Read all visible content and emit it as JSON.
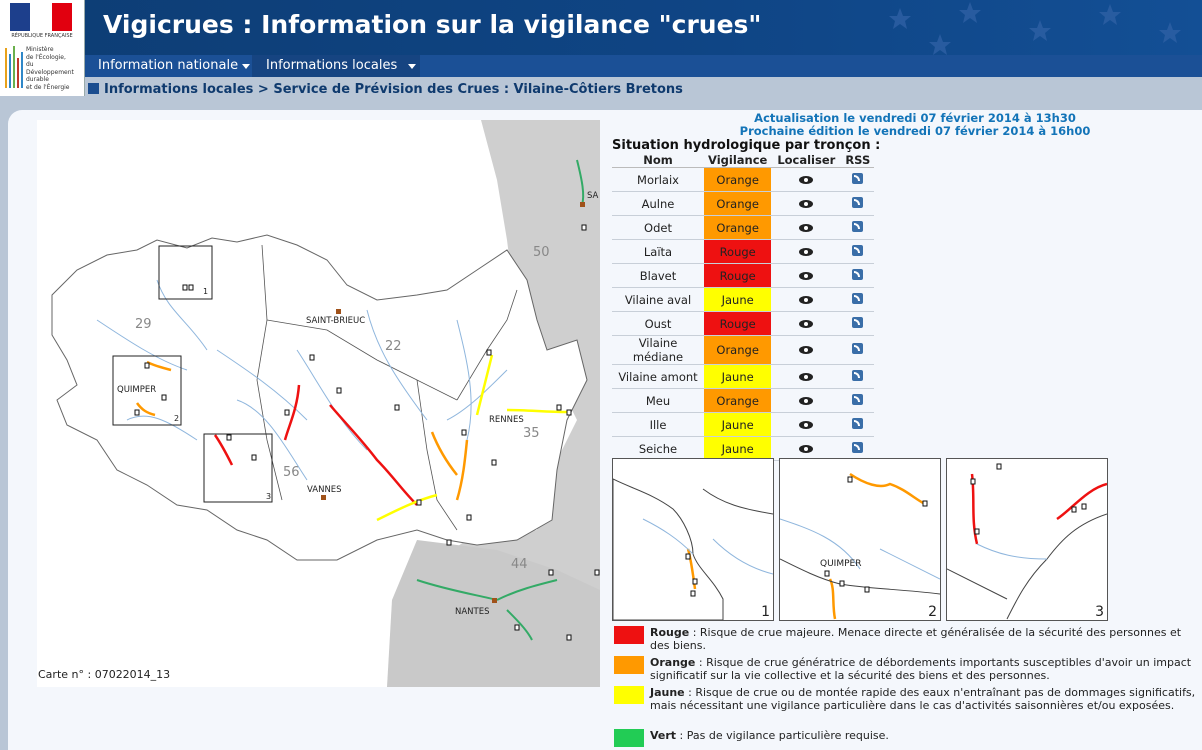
{
  "header": {
    "title": "Vigicrues : Information sur la vigilance \"crues\"",
    "rf_text": "RÉPUBLIQUE FRANÇAISE",
    "ministry_lines": [
      "Ministère",
      "de l'Écologie,",
      "du Développement",
      "durable",
      "et de l'Énergie"
    ]
  },
  "nav": {
    "national": "Information nationale",
    "local": "Informations locales"
  },
  "breadcrumb": "Informations locales > Service de Prévision des Crues : Vilaine-Côtiers Bretons",
  "update": {
    "line1": "Actualisation le vendredi 07 février 2014 à 13h30",
    "line2": "Prochaine édition le vendredi 07 février 2014 à 16h00"
  },
  "situation_title": "Situation hydrologique par tronçon :",
  "table": {
    "headers": [
      "Nom",
      "Vigilance",
      "Localiser",
      "RSS"
    ],
    "rows": [
      {
        "nom": "Morlaix",
        "level": "Orange",
        "color": "#ff9900"
      },
      {
        "nom": "Aulne",
        "level": "Orange",
        "color": "#ff9900"
      },
      {
        "nom": "Odet",
        "level": "Orange",
        "color": "#ff9900"
      },
      {
        "nom": "Laïta",
        "level": "Rouge",
        "color": "#ee1111"
      },
      {
        "nom": "Blavet",
        "level": "Rouge",
        "color": "#ee1111"
      },
      {
        "nom": "Vilaine aval",
        "level": "Jaune",
        "color": "#ffff00"
      },
      {
        "nom": "Oust",
        "level": "Rouge",
        "color": "#ee1111"
      },
      {
        "nom": "Vilaine médiane",
        "level": "Orange",
        "color": "#ff9900"
      },
      {
        "nom": "Vilaine amont",
        "level": "Jaune",
        "color": "#ffff00"
      },
      {
        "nom": "Meu",
        "level": "Orange",
        "color": "#ff9900"
      },
      {
        "nom": "Ille",
        "level": "Jaune",
        "color": "#ffff00"
      },
      {
        "nom": "Seiche",
        "level": "Jaune",
        "color": "#ffff00"
      }
    ]
  },
  "map": {
    "dept_labels": [
      "29",
      "22",
      "35",
      "56",
      "44",
      "50"
    ],
    "cities": [
      "SAINT-BRIEUC",
      "QUIMPER",
      "RENNES",
      "VANNES",
      "NANTES",
      "SA"
    ],
    "box_numbers": [
      "1",
      "2",
      "3"
    ],
    "carte_label": "Carte n° : 07022014_13"
  },
  "insets": {
    "numbers": [
      "1",
      "2",
      "3"
    ],
    "inset2_city": "QUIMPER"
  },
  "legend": [
    {
      "label": "Rouge",
      "text": " : Risque de crue majeure. Menace directe et généralisée de la sécurité des personnes et des biens.",
      "color": "#ee1111"
    },
    {
      "label": "Orange",
      "text": " : Risque de crue génératrice de débordements importants susceptibles d'avoir un impact significatif sur la vie collective et la sécurité des biens et des personnes.",
      "color": "#ff9900"
    },
    {
      "label": "Jaune",
      "text": " : Risque de crue ou de montée rapide des eaux n'entraînant pas de dommages significatifs, mais nécessitant une vigilance particulière dans le cas d'activités saisonnières et/ou exposées.",
      "color": "#ffff00"
    },
    {
      "label": "Vert",
      "text": " : Pas de vigilance particulière requise.",
      "color": "#22cc55"
    }
  ]
}
